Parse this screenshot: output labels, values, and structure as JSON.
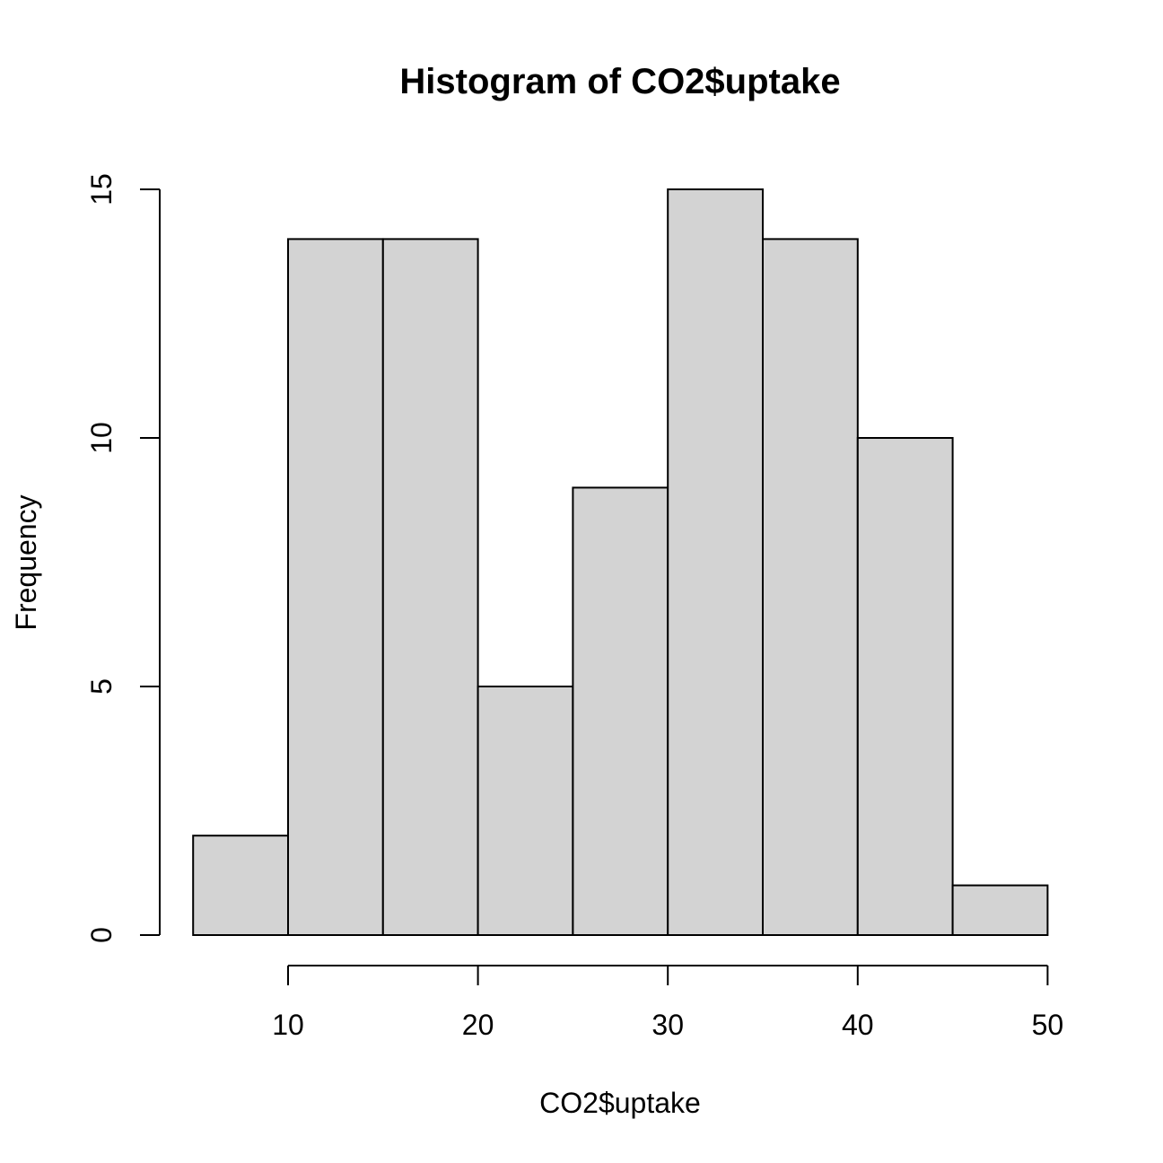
{
  "chart_data": {
    "type": "bar",
    "title": "Histogram of CO2$uptake",
    "xlabel": "CO2$uptake",
    "ylabel": "Frequency",
    "bins": [
      {
        "start": 5,
        "end": 10,
        "count": 2
      },
      {
        "start": 10,
        "end": 15,
        "count": 14
      },
      {
        "start": 15,
        "end": 20,
        "count": 14
      },
      {
        "start": 20,
        "end": 25,
        "count": 5
      },
      {
        "start": 25,
        "end": 30,
        "count": 9
      },
      {
        "start": 30,
        "end": 35,
        "count": 15
      },
      {
        "start": 35,
        "end": 40,
        "count": 14
      },
      {
        "start": 40,
        "end": 45,
        "count": 10
      },
      {
        "start": 45,
        "end": 50,
        "count": 1
      }
    ],
    "xticks": [
      10,
      20,
      30,
      40,
      50
    ],
    "yticks": [
      0,
      5,
      10,
      15
    ],
    "xlim": [
      5,
      50
    ],
    "ylim": [
      0,
      15
    ],
    "bar_color": "#d3d3d3",
    "grid": false,
    "legend": "none"
  }
}
